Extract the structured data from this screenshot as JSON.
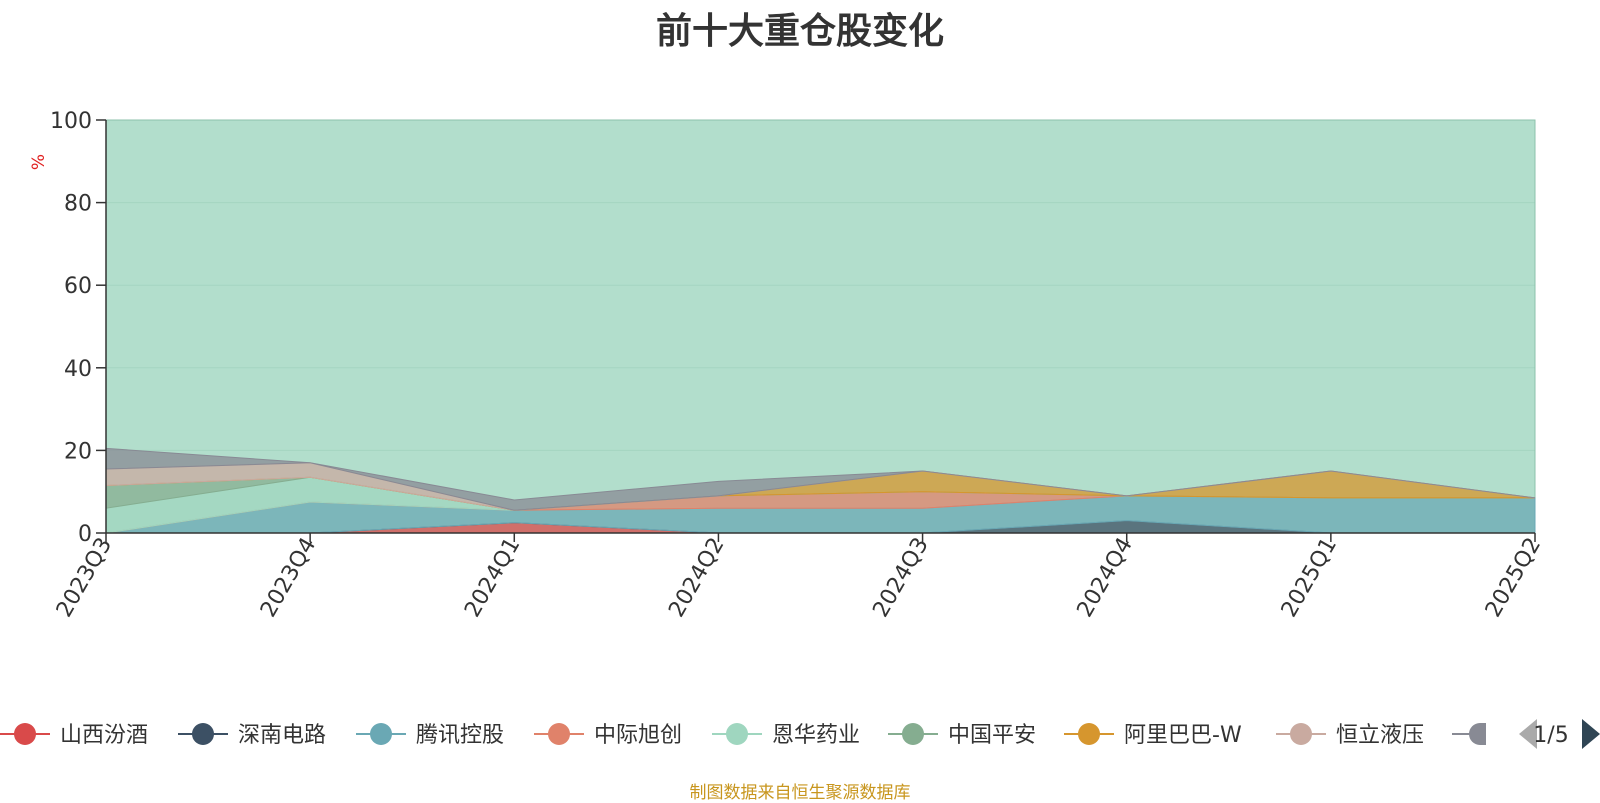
{
  "title": "前十大重仓股变化",
  "source_note": "制图数据来自恒生聚源数据库",
  "legend_page": "1/5",
  "chart_data": {
    "type": "area",
    "stacked": true,
    "title": "前十大重仓股变化",
    "ylabel": "%",
    "ylim": [
      0,
      100
    ],
    "yticks": [
      "0",
      "20",
      "40",
      "60",
      "80",
      "100"
    ],
    "categories": [
      "2023Q3",
      "2023Q4",
      "2024Q1",
      "2024Q2",
      "2024Q3",
      "2024Q4",
      "2025Q1",
      "2025Q2"
    ],
    "grid": true,
    "legend_position": "bottom",
    "series": [
      {
        "name": "山西汾酒",
        "color": "#d94a4a",
        "values": [
          0,
          0,
          2.5,
          0,
          0,
          0,
          0,
          0
        ]
      },
      {
        "name": "深南电路",
        "color": "#3c5064",
        "values": [
          0,
          0,
          0,
          0,
          0,
          3,
          0,
          0
        ]
      },
      {
        "name": "腾讯控股",
        "color": "#6aa8b4",
        "values": [
          0,
          7.5,
          3,
          6,
          6,
          6,
          8.5,
          8.5
        ]
      },
      {
        "name": "中际旭创",
        "color": "#e0826a",
        "values": [
          0,
          0,
          0,
          3,
          4,
          0,
          0,
          0
        ]
      },
      {
        "name": "恩华药业",
        "color": "#9fd6bf",
        "values": [
          6,
          6,
          0,
          0,
          0,
          0,
          0,
          0
        ]
      },
      {
        "name": "中国平安",
        "color": "#85ad90",
        "values": [
          5.5,
          0,
          0,
          0,
          0,
          0,
          0,
          0
        ]
      },
      {
        "name": "阿里巴巴-W",
        "color": "#d6962e",
        "values": [
          0,
          0,
          0,
          0,
          5,
          0,
          6.5,
          0
        ]
      },
      {
        "name": "恒立液压",
        "color": "#c9aaa0",
        "values": [
          4,
          3.5,
          0,
          0,
          0,
          0,
          0,
          0
        ]
      },
      {
        "name": "",
        "color": "#888a94",
        "values": [
          5,
          0,
          2.5,
          3.5,
          0,
          0,
          0,
          0
        ]
      }
    ],
    "total": [
      100,
      100,
      100,
      100,
      100,
      100,
      100,
      100
    ]
  }
}
